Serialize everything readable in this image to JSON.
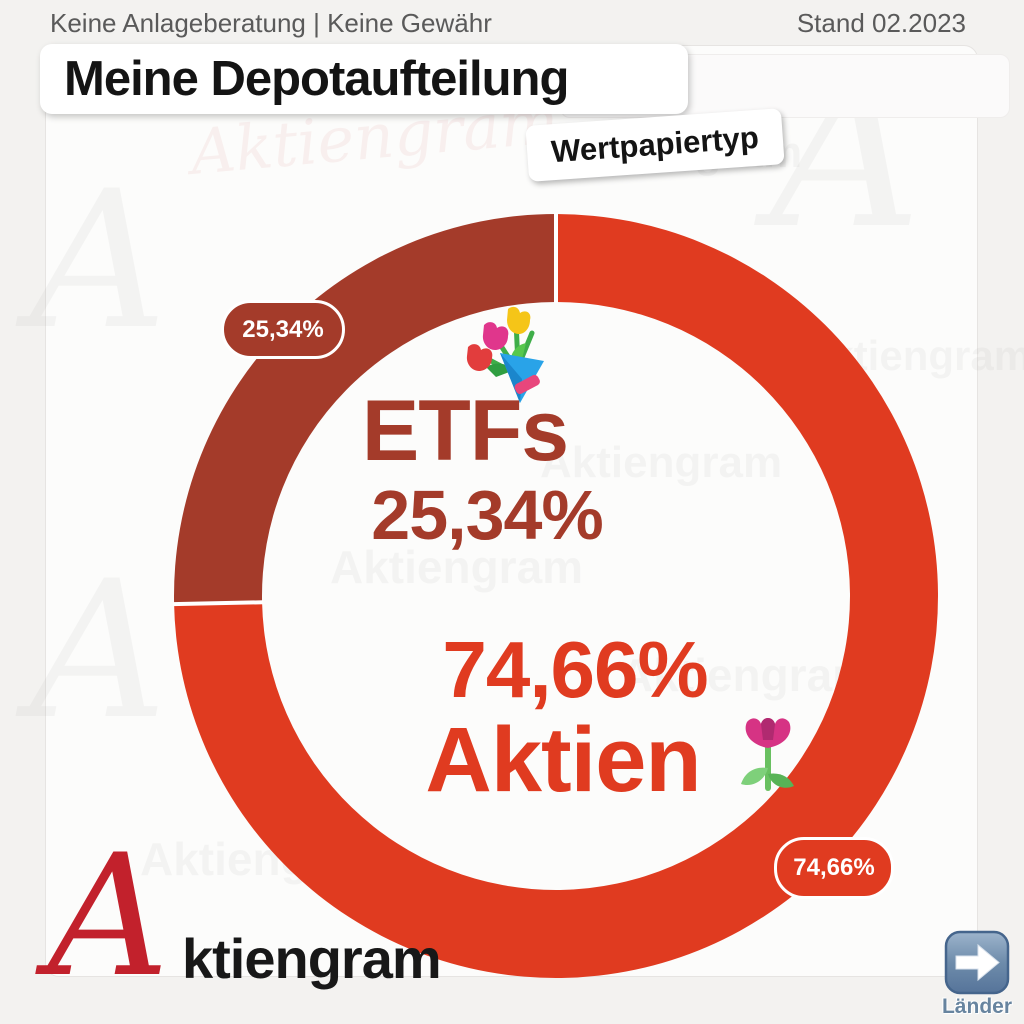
{
  "header": {
    "disclaimer": "Keine Anlageberatung | Keine Gewähr",
    "date_label": "Stand 02.2023"
  },
  "title": "Meine Depotaufteilung",
  "category_tag": "Wertpapiertyp",
  "chart_data": {
    "type": "pie",
    "style": "donut",
    "title": "Meine Depotaufteilung",
    "subtitle": "Wertpapiertyp",
    "categories": [
      "Aktien",
      "ETFs"
    ],
    "values": [
      74.66,
      25.34
    ],
    "value_labels": [
      "74,66%",
      "25,34%"
    ],
    "colors": [
      "#e03b20",
      "#a43b2a"
    ],
    "start_angle_deg": 0,
    "direction": "clockwise",
    "separator_color": "#ffffff",
    "legend": "none",
    "annotations": [
      {
        "text": "ETFs",
        "position": "center-upper",
        "color": "#a43b2a"
      },
      {
        "text": "25,34%",
        "position": "center-upper",
        "color": "#a43b2a"
      },
      {
        "text": "74,66%",
        "position": "center-lower",
        "color": "#e03b20"
      },
      {
        "text": "Aktien",
        "position": "center-lower",
        "color": "#e03b20"
      }
    ]
  },
  "icons": {
    "bouquet": "bouquet-emoji",
    "tulip": "tulip-emoji",
    "arrow": "arrow-right-button-emoji"
  },
  "watermark": {
    "text": "Aktiengram",
    "letter": "A"
  },
  "logo": {
    "initial": "A",
    "rest": "ktiengram"
  },
  "nav": {
    "laender_label": "Länder"
  },
  "colors": {
    "aktien": "#e03b20",
    "etfs": "#a43b2a",
    "header_gray": "#5a5a5a",
    "logo_red": "#c2212c",
    "laender_blue": "#67849f"
  }
}
